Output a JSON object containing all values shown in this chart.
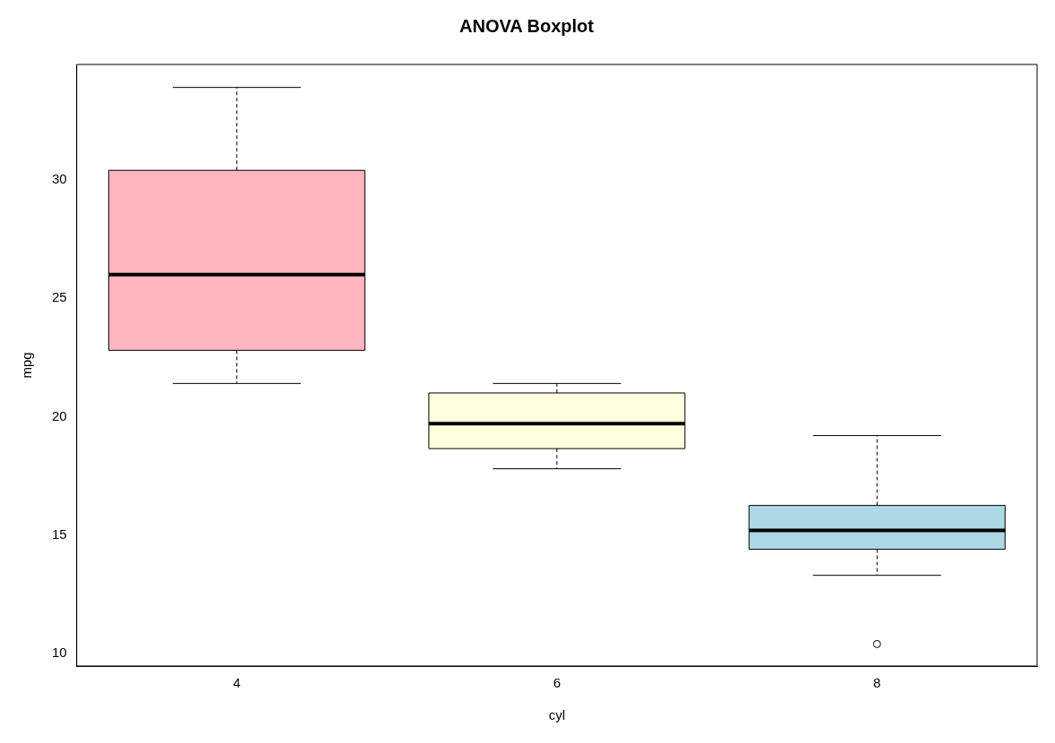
{
  "chart_data": {
    "type": "box",
    "title": "ANOVA Boxplot",
    "xlabel": "cyl",
    "ylabel": "mpg",
    "categories": [
      "4",
      "6",
      "8"
    ],
    "colors": [
      "#ffb6c1",
      "#ffffe0",
      "#add8e6"
    ],
    "boxes": [
      {
        "low": 21.4,
        "q1": 22.8,
        "median": 26.0,
        "q3": 30.4,
        "high": 33.9
      },
      {
        "low": 17.8,
        "q1": 18.65,
        "median": 19.7,
        "q3": 21.0,
        "high": 21.4
      },
      {
        "low": 13.3,
        "q1": 14.4,
        "median": 15.2,
        "q3": 16.25,
        "high": 19.2,
        "outliers": [
          10.4
        ]
      }
    ],
    "ylim": [
      9.47,
      34.87
    ],
    "yticks": [
      10,
      15,
      20,
      25,
      30
    ],
    "grid": false,
    "legend": false
  }
}
